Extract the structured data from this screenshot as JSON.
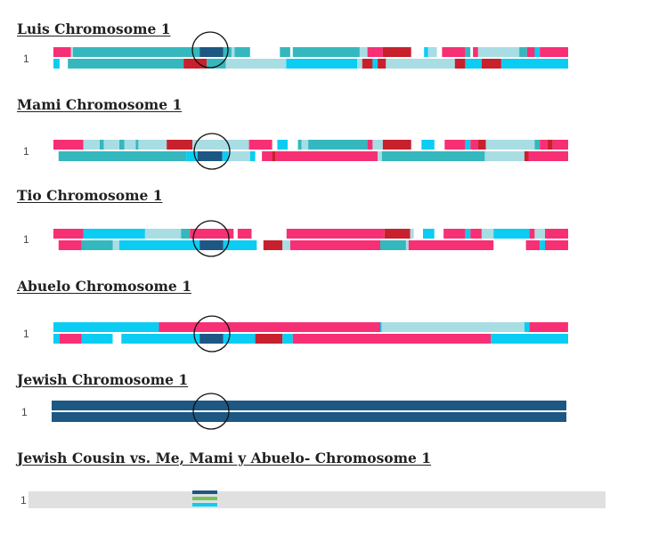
{
  "palette": {
    "pink": "#f72f74",
    "teal": "#35b7be",
    "cyan": "#0bcdf3",
    "light": "#a8dde4",
    "red": "#c8202d",
    "navy": "#1d5783",
    "green": "#76c25a",
    "track": "#e0e0e0"
  },
  "panels": [
    {
      "title": "Luis Chromosome 1",
      "chromosome": "1",
      "highlight_label": "shared region",
      "strands": [
        [
          [
            "pink",
            0,
            0.034
          ],
          [
            "light",
            0.034,
            0.038
          ],
          [
            "teal",
            0.038,
            0.284
          ],
          [
            "navy",
            0.284,
            0.33
          ],
          [
            "teal",
            0.33,
            0.346
          ],
          [
            "light",
            0.346,
            0.352
          ],
          [
            "teal",
            0.352,
            0.382
          ],
          [
            "teal",
            0.44,
            0.46
          ],
          [
            "teal",
            0.465,
            0.595
          ],
          [
            "light",
            0.595,
            0.61
          ],
          [
            "pink",
            0.61,
            0.64
          ],
          [
            "red",
            0.64,
            0.695
          ],
          [
            "cyan",
            0.72,
            0.728
          ],
          [
            "light",
            0.728,
            0.745
          ],
          [
            "pink",
            0.755,
            0.8
          ],
          [
            "teal",
            0.8,
            0.81
          ],
          [
            "pink",
            0.815,
            0.825
          ],
          [
            "light",
            0.825,
            0.905
          ],
          [
            "teal",
            0.905,
            0.92
          ],
          [
            "pink",
            0.92,
            0.935
          ],
          [
            "cyan",
            0.935,
            0.945
          ],
          [
            "pink",
            0.945,
            1.0
          ]
        ],
        [
          [
            "cyan",
            0,
            0.012
          ],
          [
            "teal",
            0.028,
            0.253
          ],
          [
            "red",
            0.253,
            0.298
          ],
          [
            "teal",
            0.298,
            0.335
          ],
          [
            "light",
            0.335,
            0.452
          ],
          [
            "cyan",
            0.452,
            0.59
          ],
          [
            "light",
            0.59,
            0.6
          ],
          [
            "red",
            0.6,
            0.62
          ],
          [
            "cyan",
            0.62,
            0.63
          ],
          [
            "red",
            0.63,
            0.646
          ],
          [
            "light",
            0.646,
            0.78
          ],
          [
            "red",
            0.78,
            0.8
          ],
          [
            "cyan",
            0.8,
            0.832
          ],
          [
            "red",
            0.832,
            0.87
          ],
          [
            "cyan",
            0.87,
            1.0
          ]
        ]
      ]
    },
    {
      "title": "Mami Chromosome 1",
      "chromosome": "1",
      "highlight_label": "shared region",
      "strands": [
        [
          [
            "pink",
            0,
            0.058
          ],
          [
            "light",
            0.058,
            0.09
          ],
          [
            "teal",
            0.09,
            0.098
          ],
          [
            "light",
            0.098,
            0.128
          ],
          [
            "teal",
            0.128,
            0.138
          ],
          [
            "light",
            0.138,
            0.16
          ],
          [
            "teal",
            0.16,
            0.165
          ],
          [
            "light",
            0.165,
            0.22
          ],
          [
            "red",
            0.22,
            0.27
          ],
          [
            "light",
            0.27,
            0.38
          ],
          [
            "pink",
            0.38,
            0.425
          ],
          [
            "cyan",
            0.435,
            0.455
          ],
          [
            "teal",
            0.475,
            0.482
          ],
          [
            "light",
            0.482,
            0.495
          ],
          [
            "teal",
            0.495,
            0.61
          ],
          [
            "pink",
            0.61,
            0.62
          ],
          [
            "light",
            0.62,
            0.64
          ],
          [
            "red",
            0.64,
            0.695
          ],
          [
            "cyan",
            0.715,
            0.74
          ],
          [
            "pink",
            0.76,
            0.8
          ],
          [
            "cyan",
            0.8,
            0.81
          ],
          [
            "pink",
            0.81,
            0.825
          ],
          [
            "red",
            0.825,
            0.84
          ],
          [
            "light",
            0.84,
            0.935
          ],
          [
            "teal",
            0.935,
            0.945
          ],
          [
            "pink",
            0.945,
            0.96
          ],
          [
            "red",
            0.96,
            0.97
          ],
          [
            "pink",
            0.97,
            1.0
          ]
        ],
        [
          [
            "teal",
            0.01,
            0.258
          ],
          [
            "cyan",
            0.258,
            0.28
          ],
          [
            "navy",
            0.28,
            0.328
          ],
          [
            "cyan",
            0.328,
            0.34
          ],
          [
            "light",
            0.34,
            0.382
          ],
          [
            "cyan",
            0.382,
            0.392
          ],
          [
            "pink",
            0.405,
            0.425
          ],
          [
            "red",
            0.425,
            0.432
          ],
          [
            "pink",
            0.432,
            0.63
          ],
          [
            "light",
            0.63,
            0.638
          ],
          [
            "teal",
            0.638,
            0.838
          ],
          [
            "light",
            0.838,
            0.915
          ],
          [
            "red",
            0.915,
            0.923
          ],
          [
            "pink",
            0.923,
            1.0
          ]
        ]
      ]
    },
    {
      "title": "Tio Chromosome 1",
      "chromosome": "1",
      "highlight_label": "shared region",
      "strands": [
        [
          [
            "pink",
            0,
            0.058
          ],
          [
            "cyan",
            0.058,
            0.178
          ],
          [
            "light",
            0.178,
            0.248
          ],
          [
            "teal",
            0.248,
            0.265
          ],
          [
            "pink",
            0.265,
            0.35
          ],
          [
            "pink",
            0.358,
            0.385
          ],
          [
            "pink",
            0.453,
            0.643
          ],
          [
            "red",
            0.643,
            0.693
          ],
          [
            "light",
            0.693,
            0.7
          ],
          [
            "cyan",
            0.718,
            0.74
          ],
          [
            "pink",
            0.758,
            0.8
          ],
          [
            "cyan",
            0.8,
            0.81
          ],
          [
            "pink",
            0.81,
            0.832
          ],
          [
            "light",
            0.832,
            0.855
          ],
          [
            "cyan",
            0.855,
            0.925
          ],
          [
            "pink",
            0.925,
            0.935
          ],
          [
            "light",
            0.935,
            0.955
          ],
          [
            "pink",
            0.955,
            1.0
          ]
        ],
        [
          [
            "pink",
            0.01,
            0.055
          ],
          [
            "teal",
            0.055,
            0.115
          ],
          [
            "light",
            0.115,
            0.128
          ],
          [
            "cyan",
            0.128,
            0.284
          ],
          [
            "navy",
            0.284,
            0.33
          ],
          [
            "cyan",
            0.33,
            0.395
          ],
          [
            "red",
            0.408,
            0.445
          ],
          [
            "light",
            0.445,
            0.46
          ],
          [
            "pink",
            0.46,
            0.635
          ],
          [
            "teal",
            0.635,
            0.685
          ],
          [
            "light",
            0.685,
            0.69
          ],
          [
            "pink",
            0.69,
            0.855
          ],
          [
            "pink",
            0.918,
            0.945
          ],
          [
            "cyan",
            0.945,
            0.955
          ],
          [
            "pink",
            0.955,
            1.0
          ]
        ]
      ]
    },
    {
      "title": "Abuelo Chromosome 1",
      "chromosome": "1",
      "highlight_label": "shared region",
      "strands": [
        [
          [
            "cyan",
            0,
            0.205
          ],
          [
            "pink",
            0.205,
            0.635
          ],
          [
            "cyan",
            0.635,
            0.638
          ],
          [
            "light",
            0.638,
            0.915
          ],
          [
            "cyan",
            0.915,
            0.925
          ],
          [
            "pink",
            0.925,
            1.0
          ]
        ],
        [
          [
            "cyan",
            0,
            0.012
          ],
          [
            "pink",
            0.012,
            0.055
          ],
          [
            "cyan",
            0.055,
            0.115
          ],
          [
            "cyan",
            0.132,
            0.284
          ],
          [
            "navy",
            0.284,
            0.33
          ],
          [
            "cyan",
            0.33,
            0.392
          ],
          [
            "red",
            0.392,
            0.445
          ],
          [
            "cyan",
            0.445,
            0.465
          ],
          [
            "pink",
            0.465,
            0.85
          ],
          [
            "cyan",
            0.85,
            1.0
          ]
        ]
      ]
    },
    {
      "title": "Jewish Chromosome 1",
      "chromosome": "1",
      "highlight_label": "shared region",
      "strands": [
        [
          [
            "navy",
            0,
            1.0
          ]
        ],
        [
          [
            "navy",
            0,
            1.0
          ]
        ]
      ]
    }
  ],
  "comparison": {
    "title": "Jewish Cousin vs. Me, Mami y Abuelo- Chromosome 1",
    "chromosome": "1",
    "matches": [
      "navy",
      "green",
      "cyan"
    ]
  }
}
